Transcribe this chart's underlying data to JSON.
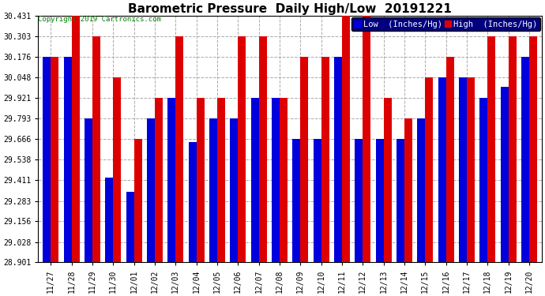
{
  "title": "Barometric Pressure  Daily High/Low  20191221",
  "copyright": "Copyright 2019 Cartronics.com",
  "legend_low": "Low  (Inches/Hg)",
  "legend_high": "High  (Inches/Hg)",
  "dates": [
    "11/27",
    "11/28",
    "11/29",
    "11/30",
    "12/01",
    "12/02",
    "12/03",
    "12/04",
    "12/05",
    "12/06",
    "12/07",
    "12/08",
    "12/09",
    "12/10",
    "12/11",
    "12/12",
    "12/13",
    "12/14",
    "12/15",
    "12/16",
    "12/17",
    "12/18",
    "12/19",
    "12/20"
  ],
  "low_values": [
    30.176,
    30.176,
    29.793,
    29.43,
    29.34,
    29.793,
    29.921,
    29.65,
    29.793,
    29.793,
    29.921,
    29.921,
    29.666,
    29.666,
    30.176,
    29.666,
    29.666,
    29.666,
    29.793,
    30.048,
    30.048,
    29.921,
    29.99,
    30.176
  ],
  "high_values": [
    30.176,
    30.431,
    30.303,
    30.048,
    29.666,
    29.921,
    30.303,
    29.921,
    29.921,
    30.303,
    30.303,
    29.921,
    30.176,
    30.176,
    30.431,
    30.431,
    29.921,
    29.793,
    30.048,
    30.176,
    30.048,
    30.303,
    30.303,
    30.303
  ],
  "ylim_min": 28.901,
  "ylim_max": 30.431,
  "yticks": [
    28.901,
    29.028,
    29.156,
    29.283,
    29.411,
    29.538,
    29.666,
    29.793,
    29.921,
    30.048,
    30.176,
    30.303,
    30.431
  ],
  "low_color": "#0000dd",
  "high_color": "#dd0000",
  "bg_color": "#ffffff",
  "grid_color": "#aaaaaa",
  "bar_width": 0.38,
  "title_fontsize": 11,
  "tick_fontsize": 7,
  "legend_fontsize": 7.5,
  "copyright_fontsize": 6.5
}
